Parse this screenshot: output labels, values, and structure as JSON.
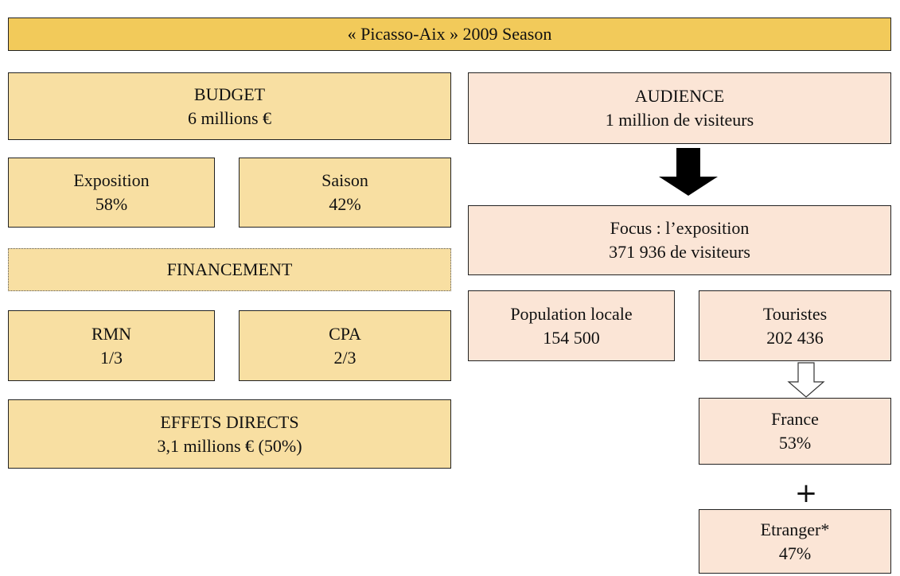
{
  "title": "«  Picasso-Aix  » 2009 Season",
  "left": {
    "budget": {
      "label": "BUDGET",
      "value": "6 millions €"
    },
    "exposition": {
      "label": "Exposition",
      "value": "58%"
    },
    "saison": {
      "label": "Saison",
      "value": "42%"
    },
    "financement": {
      "label": "FINANCEMENT"
    },
    "rmn": {
      "label": "RMN",
      "value": "1/3"
    },
    "cpa": {
      "label": "CPA",
      "value": "2/3"
    },
    "effets": {
      "label": "EFFETS DIRECTS",
      "value": "3,1 millions € (50%)"
    }
  },
  "right": {
    "audience": {
      "label": "AUDIENCE",
      "value": "1 million de visiteurs"
    },
    "focus": {
      "label": "Focus  : l’exposition",
      "value": "371  936 de visiteurs"
    },
    "population": {
      "label": "Population locale",
      "value": "154 500"
    },
    "touristes": {
      "label": "Touristes",
      "value": "202 436"
    },
    "france": {
      "label": "France",
      "value": "53%"
    },
    "operator": "+",
    "etranger": {
      "label": "Etranger*",
      "value": "47%"
    }
  }
}
